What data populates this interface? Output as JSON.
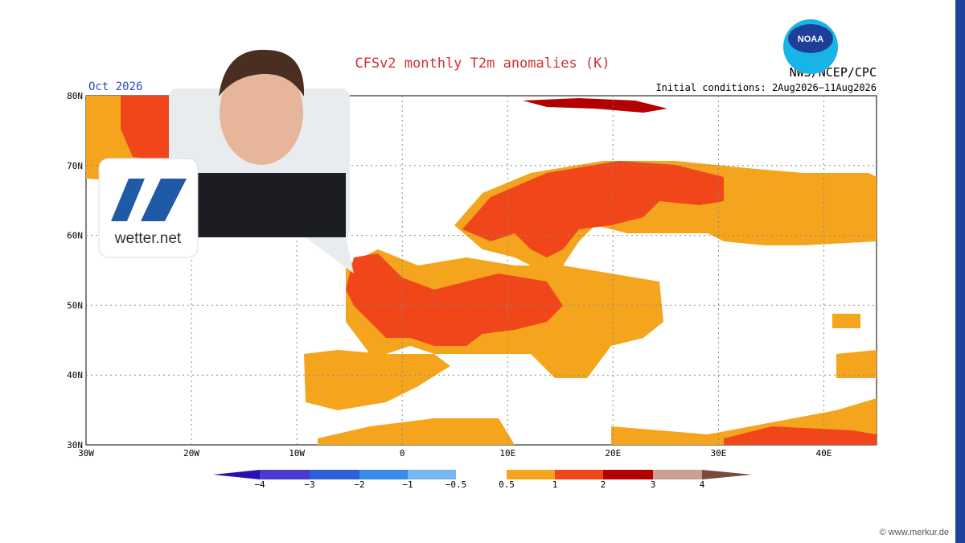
{
  "map": {
    "title": "CFSv2 monthly T2m anomalies (K)",
    "month": "Oct 2026",
    "agency": "NWS/NCEP/CPC",
    "logo": "NOAA",
    "initial_conditions": "Initial conditions: 2Aug2026−11Aug2026",
    "lat_labels": [
      "80N",
      "70N",
      "60N",
      "50N",
      "40N",
      "30N"
    ],
    "lon_labels": [
      "30W",
      "20W",
      "10W",
      "0",
      "10E",
      "20E",
      "30E",
      "40E"
    ],
    "colorbar_labels": [
      "−4",
      "−3",
      "−2",
      "−1",
      "−0.5",
      "0.5",
      "1",
      "2",
      "3",
      "4"
    ]
  },
  "badge": {
    "brand": "wetter.net"
  },
  "credit": "© www.merkur.de"
}
